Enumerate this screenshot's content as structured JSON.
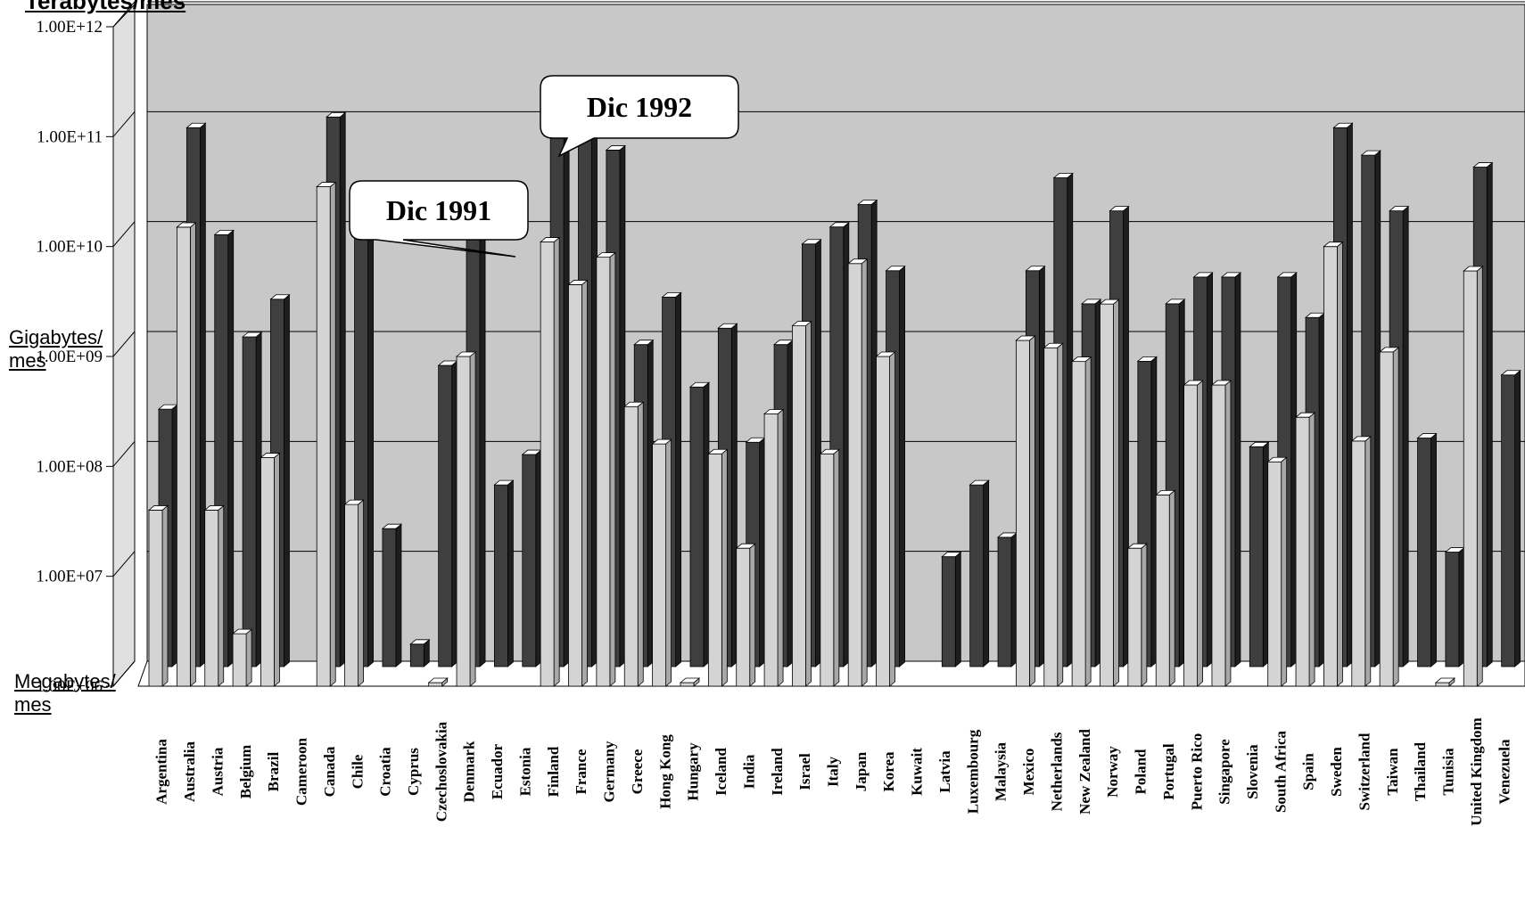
{
  "labels": {
    "terabytes": "Terabytes/mes",
    "gigabytes_line1": "Gigabytes/",
    "gigabytes_line2": "mes",
    "megabytes_line1": "Megabytes/",
    "megabytes_line2": "mes"
  },
  "callouts": {
    "dic1991": "Dic 1991",
    "dic1992": "Dic 1992"
  },
  "colors": {
    "series_1991": "#d4d4d4",
    "series_1992": "#3f3f3f",
    "wall": "#c8c8c8",
    "floor": "#ffffff"
  },
  "chart_data": {
    "type": "bar",
    "scale": "log10",
    "ylim": [
      1000000,
      1000000000000
    ],
    "ytick_labels": [
      "1.00E+06",
      "1.00E+07",
      "1.00E+08",
      "1.00E+09",
      "1.00E+10",
      "1.00E+11",
      "1.00E+12"
    ],
    "ytick_values": [
      1000000,
      10000000,
      100000000,
      1000000000,
      10000000000,
      100000000000,
      1000000000000
    ],
    "grid": true,
    "categories": [
      "Argentina",
      "Australia",
      "Austria",
      "Belgium",
      "Brazil",
      "Cameroon",
      "Canada",
      "Chile",
      "Croatia",
      "Cyprus",
      "Czechoslovakia",
      "Denmark",
      "Ecuador",
      "Estonia",
      "Finland",
      "France",
      "Germany",
      "Greece",
      "Hong Kong",
      "Hungary",
      "Iceland",
      "India",
      "Ireland",
      "Israel",
      "Italy",
      "Japan",
      "Korea",
      "Kuwait",
      "Latvia",
      "Luxembourg",
      "Malaysia",
      "Mexico",
      "Netherlands",
      "New Zealand",
      "Norway",
      "Poland",
      "Portugal",
      "Puerto Rico",
      "Singapore",
      "Slovenia",
      "South Africa",
      "Spain",
      "Sweden",
      "Switzerland",
      "Taiwan",
      "Thailand",
      "Tunisia",
      "United Kingdom",
      "Venezuela"
    ],
    "series": [
      {
        "name": "Dic 1991",
        "values": [
          40000000,
          15000000000,
          40000000,
          3000000,
          120000000,
          null,
          35000000000,
          45000000,
          null,
          null,
          1000000,
          1000000000,
          null,
          null,
          11000000000,
          4500000000,
          8000000000,
          350000000,
          160000000,
          1000000,
          130000000,
          18000000,
          300000000,
          1900000000,
          130000000,
          7000000000,
          1000000000,
          null,
          null,
          null,
          null,
          1400000000,
          1200000000,
          900000000,
          3000000000,
          18000000,
          55000000,
          550000000,
          550000000,
          null,
          110000000,
          280000000,
          10000000000,
          170000000,
          1100000000,
          null,
          1000000,
          6000000000,
          null
        ]
      },
      {
        "name": "Dic 1992",
        "values": [
          220000000,
          80000000000,
          8500000000,
          1000000000,
          2200000000,
          null,
          100000000000,
          8000000000,
          18000000,
          1600000,
          550000000,
          8000000000,
          45000000,
          85000000,
          65000000000,
          80000000000,
          50000000000,
          850000000,
          2300000000,
          350000000,
          1200000000,
          110000000,
          850000000,
          7000000000,
          10000000000,
          16000000000,
          4000000000,
          null,
          10000000,
          45000000,
          15000000,
          4000000000,
          28000000000,
          2000000000,
          14000000000,
          600000000,
          2000000000,
          3500000000,
          3500000000,
          100000000,
          3500000000,
          1500000000,
          80000000000,
          45000000000,
          14000000000,
          120000000,
          11000000,
          35000000000,
          450000000
        ]
      }
    ]
  }
}
